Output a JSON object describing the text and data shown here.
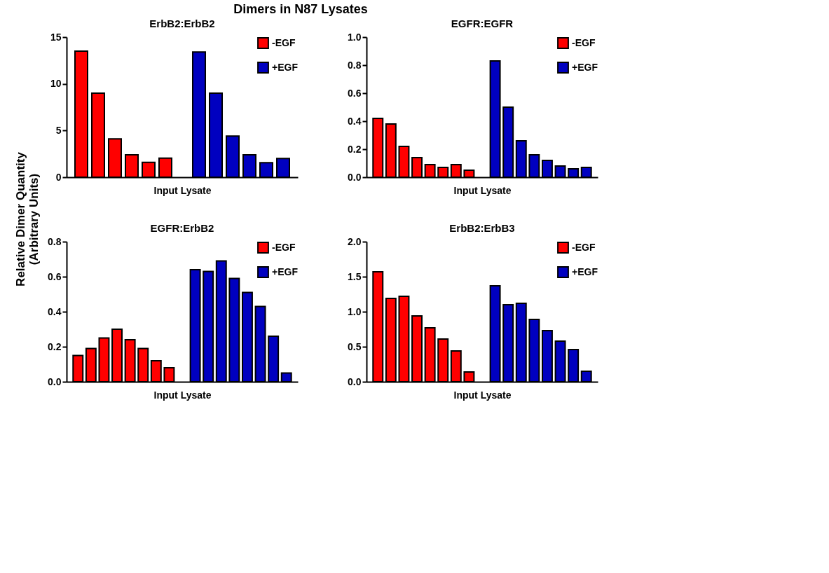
{
  "chart_data": [
    {
      "type": "bar",
      "title": "ErbB2:ErbB2",
      "annotations": [
        "Dimers in N87 Lysates"
      ],
      "ylabel": "Relative Dimer Quantity\n(Arbitrary Units)",
      "xlabel": "Input Lysate",
      "categories": [
        null,
        null,
        null,
        null,
        null,
        null,
        null,
        null,
        null,
        null,
        null,
        null,
        null
      ],
      "series": [
        {
          "name": "-EGF",
          "color": "#ff0000",
          "values": [
            13.5,
            9,
            4.1,
            2.4,
            1.6,
            2.05,
            null,
            null,
            null,
            null,
            null,
            null,
            null
          ]
        },
        {
          "name": "+EGF",
          "color": "#0000c0",
          "values": [
            null,
            null,
            null,
            null,
            null,
            null,
            null,
            13.4,
            9,
            4.4,
            2.4,
            1.55,
            2.0
          ]
        }
      ],
      "ylim": [
        0,
        15
      ],
      "yticks": [
        0,
        5,
        10,
        15
      ],
      "tick_labels": "y",
      "legend": "top right",
      "grid": false
    },
    {
      "type": "bar",
      "title": "EGFR:EGFR",
      "xlabel": "Input Lysate",
      "categories": [
        null,
        null,
        null,
        null,
        null,
        null,
        null,
        null,
        null,
        null,
        null,
        null,
        null,
        null,
        null,
        null,
        null
      ],
      "series": [
        {
          "name": "-EGF",
          "color": "#ff0000",
          "values": [
            0.42,
            0.38,
            0.22,
            0.14,
            0.09,
            0.07,
            0.09,
            0.05,
            null,
            null,
            null,
            null,
            null,
            null,
            null,
            null,
            null
          ]
        },
        {
          "name": "+EGF",
          "color": "#0000c0",
          "values": [
            null,
            null,
            null,
            null,
            null,
            null,
            null,
            null,
            null,
            0.83,
            0.5,
            0.26,
            0.16,
            0.12,
            0.08,
            0.06,
            0.07
          ]
        }
      ],
      "ylim": [
        0,
        1.0
      ],
      "yticks": [
        {
          "value": 0,
          "label": "0.0"
        },
        0.2,
        0.4,
        0.6,
        0.8,
        {
          "value": 1,
          "label": "1.0"
        }
      ],
      "tick_labels": "y",
      "legend": "top right",
      "grid": false
    },
    {
      "type": "bar",
      "title": "EGFR:ErbB2",
      "xlabel": "Input Lysate",
      "categories": [
        null,
        null,
        null,
        null,
        null,
        null,
        null,
        null,
        null,
        null,
        null,
        null,
        null,
        null,
        null,
        null,
        null
      ],
      "series": [
        {
          "name": "-EGF",
          "color": "#ff0000",
          "values": [
            0.15,
            0.19,
            0.25,
            0.3,
            0.24,
            0.19,
            0.12,
            0.08,
            null,
            null,
            null,
            null,
            null,
            null,
            null,
            null,
            null
          ]
        },
        {
          "name": "+EGF",
          "color": "#0000c0",
          "values": [
            null,
            null,
            null,
            null,
            null,
            null,
            null,
            null,
            null,
            0.64,
            0.63,
            0.69,
            0.59,
            0.51,
            0.43,
            0.26,
            0.05
          ]
        }
      ],
      "ylim": [
        0,
        0.8
      ],
      "yticks": [
        {
          "value": 0,
          "label": "0.0"
        },
        0.2,
        0.4,
        0.6,
        0.8
      ],
      "tick_labels": "y",
      "legend": "top right",
      "grid": false
    },
    {
      "type": "bar",
      "title": "ErbB2:ErbB3",
      "xlabel": "Input Lysate",
      "categories": [
        null,
        null,
        null,
        null,
        null,
        null,
        null,
        null,
        null,
        null,
        null,
        null,
        null,
        null,
        null,
        null,
        null
      ],
      "series": [
        {
          "name": "-EGF",
          "color": "#ff0000",
          "values": [
            1.57,
            1.19,
            1.22,
            0.94,
            0.77,
            0.61,
            0.44,
            0.14,
            null,
            null,
            null,
            null,
            null,
            null,
            null,
            null,
            null
          ]
        },
        {
          "name": "+EGF",
          "color": "#0000c0",
          "values": [
            null,
            null,
            null,
            null,
            null,
            null,
            null,
            null,
            null,
            1.37,
            1.1,
            1.12,
            0.89,
            0.73,
            0.58,
            0.46,
            0.15
          ]
        }
      ],
      "ylim": [
        0,
        2.0
      ],
      "yticks": [
        {
          "value": 0,
          "label": "0.0"
        },
        0.5,
        {
          "value": 1,
          "label": "1.0"
        },
        1.5,
        {
          "value": 2,
          "label": "2.0"
        }
      ],
      "tick_labels": "y",
      "legend": "top right",
      "grid": false
    }
  ]
}
